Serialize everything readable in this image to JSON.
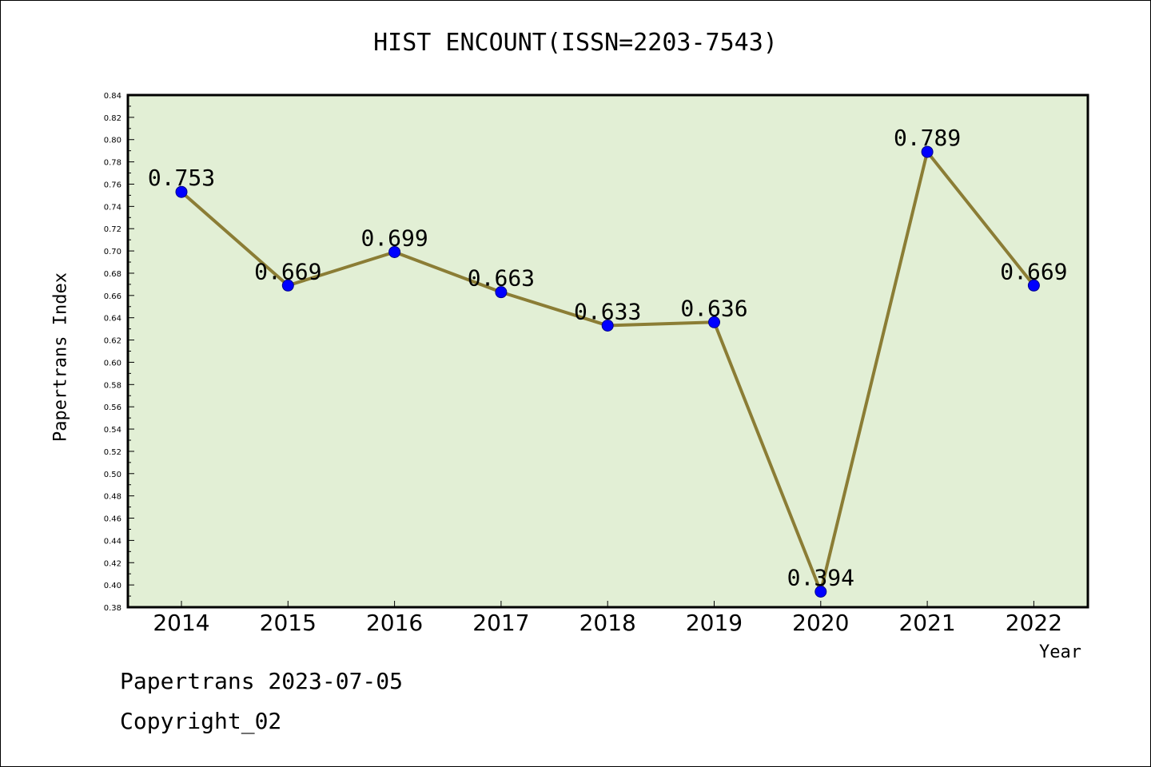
{
  "chart_data": {
    "type": "line",
    "title": "HIST ENCOUNT(ISSN=2203-7543)",
    "xlabel": "Year",
    "ylabel": "Papertrans Index",
    "categories": [
      "2014",
      "2015",
      "2016",
      "2017",
      "2018",
      "2019",
      "2020",
      "2021",
      "2022"
    ],
    "values": [
      0.753,
      0.669,
      0.699,
      0.663,
      0.633,
      0.636,
      0.394,
      0.789,
      0.669
    ],
    "data_labels": [
      "0.753",
      "0.669",
      "0.699",
      "0.663",
      "0.633",
      "0.636",
      "0.394",
      "0.789",
      "0.669"
    ],
    "ylim": [
      0.38,
      0.84
    ],
    "ytick_step": 0.02,
    "grid": false,
    "legend": "none",
    "colors": {
      "plot_background": "#e2efd5",
      "line": "#8b7d35",
      "marker": "#0000ff",
      "marker_edge": "#00008b"
    }
  },
  "footer": {
    "date_text": "Papertrans 2023-07-05",
    "copyright_text": "Copyright_02"
  }
}
